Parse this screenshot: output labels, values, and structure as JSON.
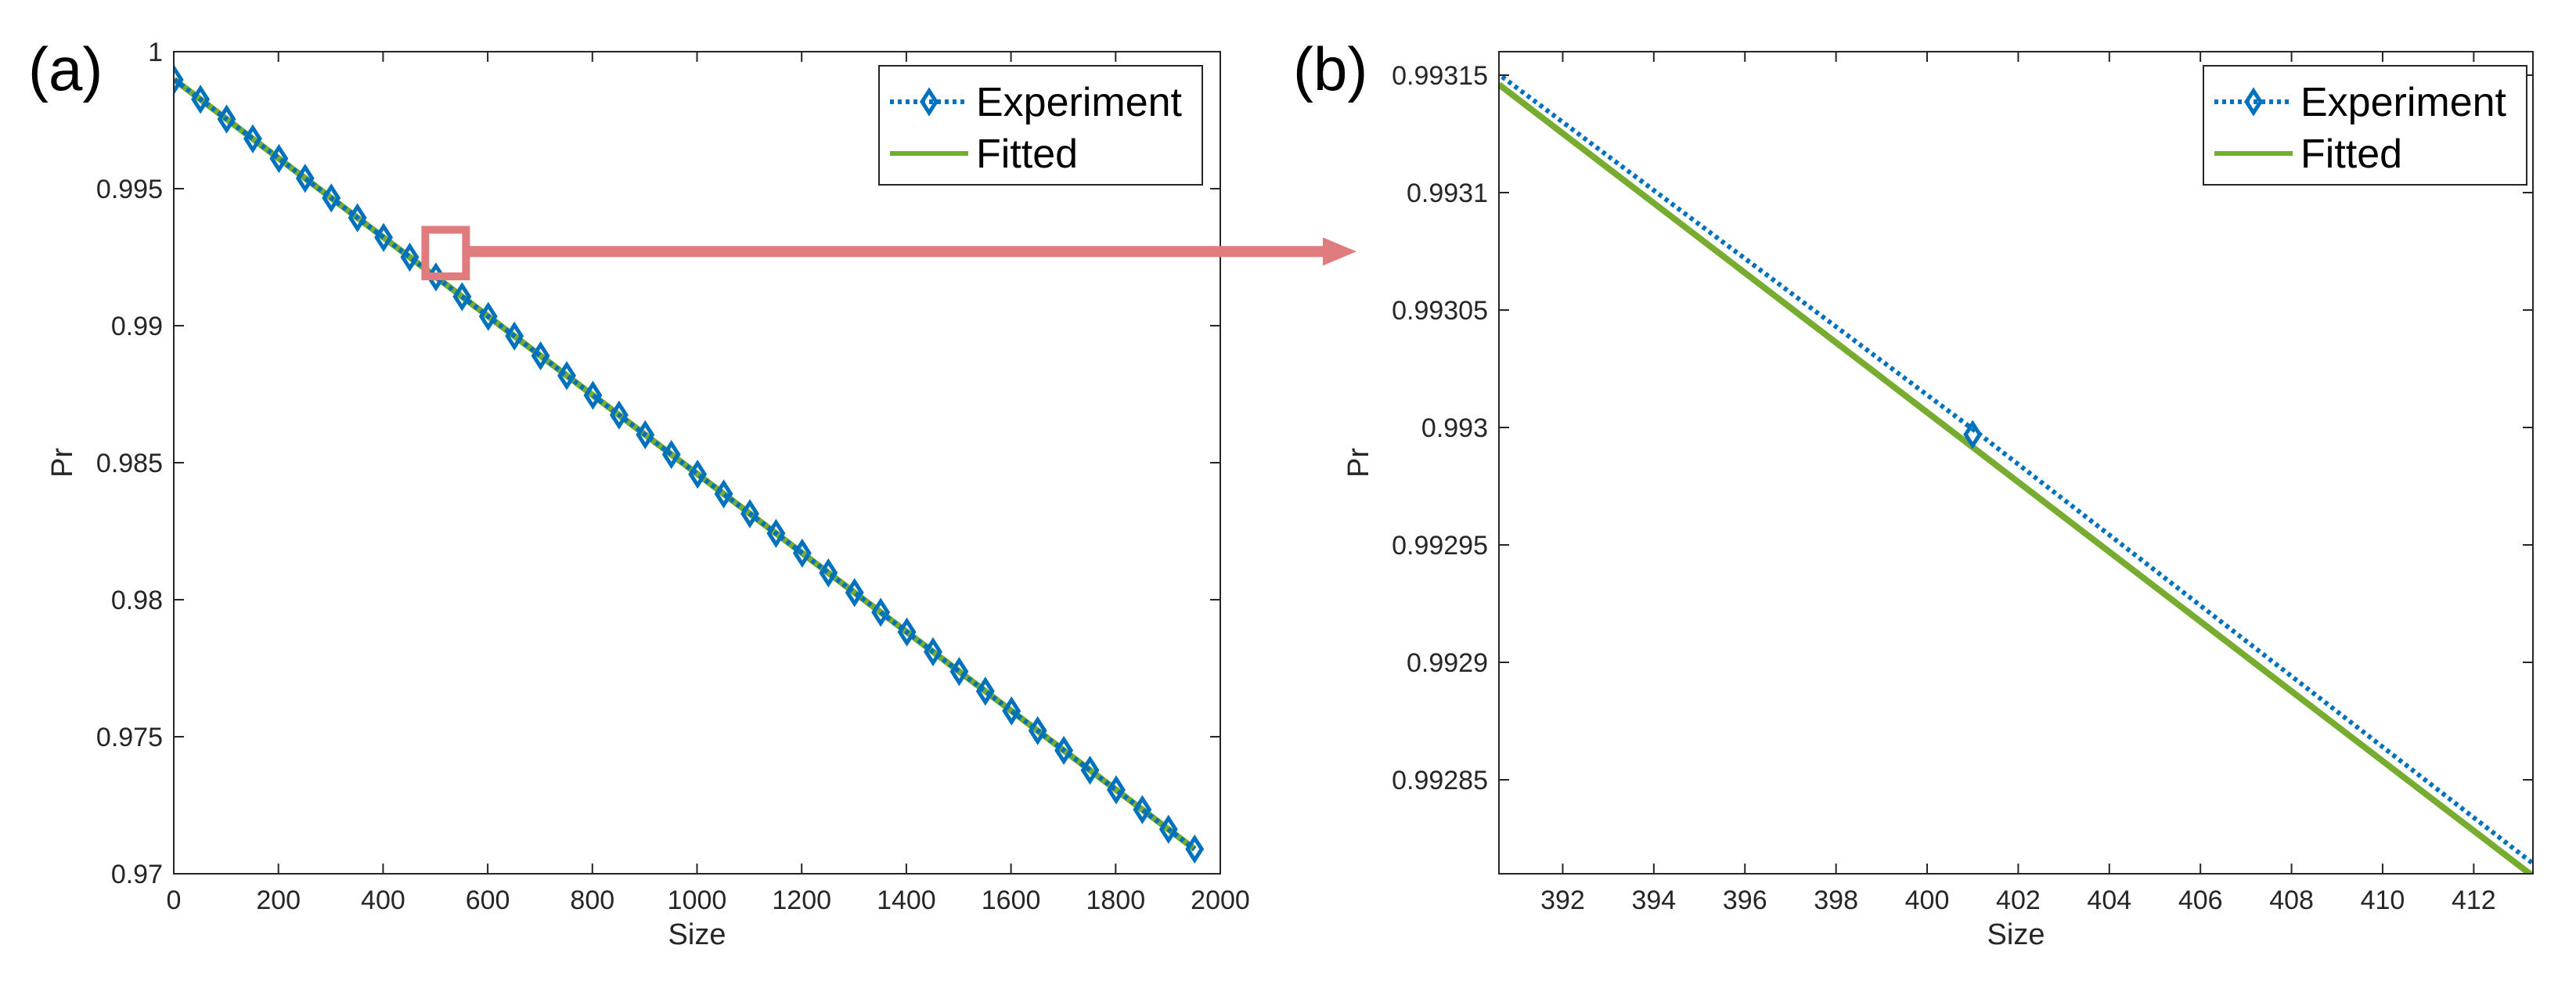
{
  "colors": {
    "experiment": "#0072BD",
    "fitted": "#77AC30",
    "highlight": "#E07B7E",
    "axis": "#262626"
  },
  "chart_data": [
    {
      "panel_label": "(a)",
      "type": "line",
      "xlabel": "Size",
      "ylabel": "Pr",
      "xlim": [
        0,
        2000
      ],
      "ylim": [
        0.97,
        1
      ],
      "xticks": [
        0,
        200,
        400,
        600,
        800,
        1000,
        1200,
        1400,
        1600,
        1800,
        2000
      ],
      "xtick_labels": [
        "0",
        "200",
        "400",
        "600",
        "800",
        "1000",
        "1200",
        "1400",
        "1600",
        "1800",
        "2000"
      ],
      "yticks": [
        0.97,
        0.975,
        0.98,
        0.985,
        0.99,
        0.995,
        1
      ],
      "ytick_labels": [
        "0.97",
        "0.975",
        "0.98",
        "0.985",
        "0.99",
        "0.995",
        "1"
      ],
      "legend": {
        "position": "top-right",
        "entries": [
          "Experiment",
          "Fitted"
        ]
      },
      "series": [
        {
          "name": "Experiment",
          "style": "dotted-diamond",
          "x": [
            1,
            51,
            101,
            151,
            201,
            251,
            301,
            351,
            401,
            451,
            501,
            551,
            601,
            651,
            701,
            751,
            801,
            851,
            901,
            951,
            1001,
            1051,
            1101,
            1151,
            1201,
            1251,
            1301,
            1351,
            1401,
            1451,
            1501,
            1551,
            1601,
            1651,
            1701,
            1751,
            1801,
            1851,
            1901,
            1951
          ],
          "y": [
            0.99898,
            0.99826,
            0.99754,
            0.99682,
            0.9961,
            0.99538,
            0.99466,
            0.99394,
            0.99322,
            0.9925,
            0.99178,
            0.99106,
            0.99034,
            0.98962,
            0.9889,
            0.98818,
            0.98746,
            0.98674,
            0.98602,
            0.9853,
            0.98458,
            0.98386,
            0.98314,
            0.98242,
            0.9817,
            0.98098,
            0.98026,
            0.97954,
            0.97882,
            0.9781,
            0.97738,
            0.97666,
            0.97594,
            0.97522,
            0.9745,
            0.97378,
            0.97306,
            0.97234,
            0.97162,
            0.9709
          ]
        },
        {
          "name": "Fitted",
          "style": "solid",
          "x": [
            1,
            1951
          ],
          "y": [
            0.99898,
            0.9709
          ]
        }
      ],
      "annotation": {
        "type": "zoom-box",
        "x_range": [
          391,
          412
        ],
        "y_range": [
          0.9918,
          0.9935
        ]
      }
    },
    {
      "panel_label": "(b)",
      "type": "line",
      "xlabel": "Size",
      "ylabel": "Pr",
      "xlim": [
        390.6,
        413.3
      ],
      "ylim": [
        0.99281,
        0.99316
      ],
      "xticks": [
        392,
        394,
        396,
        398,
        400,
        402,
        404,
        406,
        408,
        410,
        412
      ],
      "xtick_labels": [
        "392",
        "394",
        "396",
        "398",
        "400",
        "402",
        "404",
        "406",
        "408",
        "410",
        "412"
      ],
      "yticks": [
        0.99285,
        0.9929,
        0.99295,
        0.993,
        0.99305,
        0.9931,
        0.99315
      ],
      "ytick_labels": [
        "0.99285",
        "0.9929",
        "0.99295",
        "0.993",
        "0.99305",
        "0.9931",
        "0.99315"
      ],
      "legend": {
        "position": "top-right",
        "entries": [
          "Experiment",
          "Fitted"
        ]
      },
      "series": [
        {
          "name": "Experiment",
          "style": "dotted-diamond",
          "x": [
            390.6,
            401,
            413.3
          ],
          "y": [
            0.993148,
            0.992997,
            0.992812
          ],
          "markers": [
            401
          ]
        },
        {
          "name": "Fitted",
          "style": "solid",
          "x": [
            390.6,
            413.3
          ],
          "y": [
            0.993146,
            0.992809
          ]
        }
      ]
    }
  ]
}
